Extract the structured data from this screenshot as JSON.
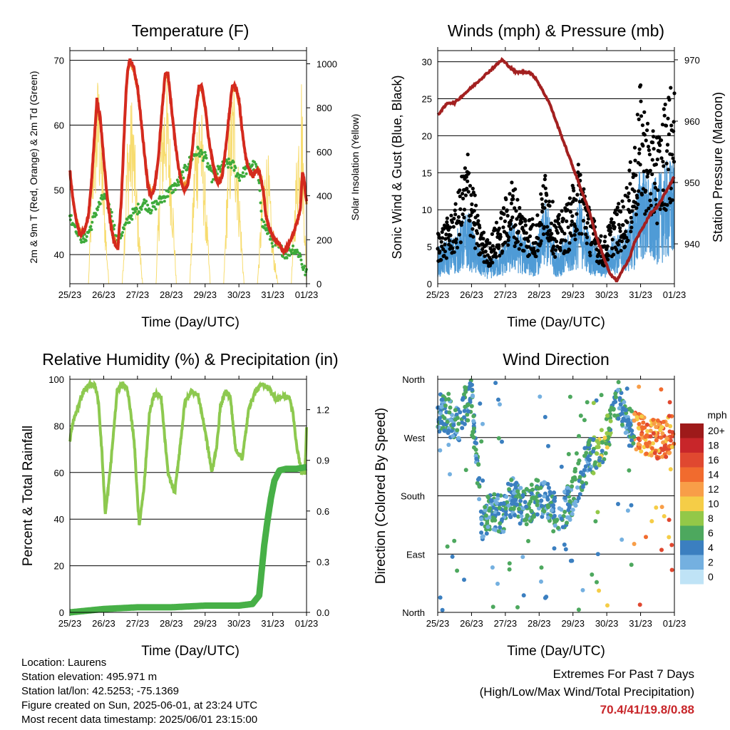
{
  "x_ticks": [
    "25/23",
    "26/23",
    "27/23",
    "28/23",
    "29/23",
    "30/23",
    "31/23",
    "01/23"
  ],
  "chart_data": [
    {
      "type": "line",
      "title": "Temperature (F)",
      "xlabel": "Time (Day/UTC)",
      "ylabel": "2m & 9m T (Red, Orange) & 2m Td (Green)",
      "y2label": "Solar Insolation (Yellow)",
      "ylim": [
        35.5,
        71.5
      ],
      "y_ticks": [
        40,
        50,
        60,
        70
      ],
      "y2lim": [
        0,
        1060
      ],
      "y2_ticks": [
        0,
        200,
        400,
        600,
        800,
        1000
      ],
      "colors": {
        "t2m": "#d42a1e",
        "t9m": "#f08a24",
        "td2m": "#3daa3a",
        "solar": "#f7dc6f"
      },
      "series": [
        {
          "key": "t2m",
          "x": [
            0,
            0.1,
            0.2,
            0.3,
            0.45,
            0.55,
            0.65,
            0.75,
            0.8,
            0.9,
            1.0,
            1.1,
            1.2,
            1.3,
            1.42,
            1.52,
            1.6,
            1.66,
            1.72,
            1.78,
            1.88,
            2.0,
            2.1,
            2.2,
            2.3,
            2.4,
            2.5,
            2.62,
            2.72,
            2.82,
            2.9,
            3.0,
            3.1,
            3.2,
            3.3,
            3.4,
            3.5,
            3.62,
            3.72,
            3.82,
            3.9,
            4.0,
            4.1,
            4.2,
            4.3,
            4.4,
            4.5,
            4.6,
            4.72,
            4.8,
            4.9,
            5.0,
            5.1,
            5.2,
            5.3,
            5.42,
            5.5,
            5.6,
            5.72,
            5.8,
            5.9,
            6.0,
            6.1,
            6.2,
            6.3,
            6.42,
            6.5,
            6.6,
            6.72,
            6.82,
            6.88,
            6.94,
            7.0
          ],
          "values": [
            53,
            48,
            45,
            43,
            44,
            46,
            52,
            60,
            64,
            61,
            55,
            49,
            45,
            42,
            41,
            48,
            58,
            65,
            69,
            70,
            69,
            66,
            61,
            56,
            51,
            49,
            50,
            55,
            62,
            68,
            68,
            63,
            58,
            54,
            51,
            50,
            51,
            56,
            62,
            66,
            66,
            63,
            58,
            55,
            52,
            51,
            52,
            56,
            62,
            66,
            66,
            64,
            59,
            55,
            53,
            52,
            53,
            53,
            50,
            46,
            44,
            43,
            42,
            41.5,
            40.5,
            41,
            42,
            43,
            45,
            47,
            53,
            51,
            48
          ]
        },
        {
          "key": "t9m",
          "x": [
            0,
            0.1,
            0.2,
            0.3,
            0.45,
            0.55,
            0.65,
            0.75,
            0.8,
            0.9,
            1.0,
            1.1,
            1.2,
            1.3,
            1.42,
            1.52,
            1.6,
            1.66,
            1.72,
            1.78,
            1.88,
            2.0,
            2.1,
            2.2,
            2.3,
            2.4,
            2.5,
            2.62,
            2.72,
            2.82,
            2.9,
            3.0,
            3.1,
            3.2,
            3.3,
            3.4,
            3.5,
            3.62,
            3.72,
            3.82,
            3.9,
            4.0,
            4.1,
            4.2,
            4.3,
            4.4,
            4.5,
            4.6,
            4.72,
            4.8,
            4.9,
            5.0,
            5.1,
            5.2,
            5.3,
            5.42,
            5.5,
            5.6,
            5.72,
            5.8,
            5.9,
            6.0,
            6.1,
            6.2,
            6.3,
            6.42,
            6.5,
            6.6,
            6.72,
            6.82,
            6.88,
            6.94,
            7.0
          ],
          "values": [
            52.5,
            48,
            45.5,
            43.5,
            44,
            46,
            51.5,
            59,
            63,
            60.5,
            55,
            49.5,
            45.5,
            42.5,
            41.5,
            48,
            57.5,
            64,
            68.5,
            69.5,
            68.5,
            65.5,
            61,
            56,
            51.5,
            49.5,
            50.5,
            55,
            61.5,
            67.5,
            67.5,
            62.5,
            58,
            54,
            51.5,
            50.5,
            51.5,
            56,
            61.5,
            65.5,
            65.5,
            62.5,
            58,
            55,
            52.5,
            51.5,
            52.5,
            56,
            61.5,
            65.5,
            65.5,
            63.5,
            59,
            55,
            53,
            52,
            53,
            53,
            50,
            46,
            44,
            43,
            42,
            41.5,
            40.5,
            41,
            42,
            43,
            45,
            47,
            52,
            50.5,
            48
          ]
        },
        {
          "key": "td2m",
          "x": [
            0,
            0.2,
            0.4,
            0.6,
            0.8,
            1.0,
            1.2,
            1.4,
            1.6,
            1.8,
            2.0,
            2.2,
            2.4,
            2.6,
            2.8,
            3.0,
            3.2,
            3.4,
            3.6,
            3.8,
            4.0,
            4.2,
            4.4,
            4.6,
            4.8,
            5.0,
            5.2,
            5.4,
            5.55,
            5.7,
            5.8,
            6.0,
            6.2,
            6.4,
            6.6,
            6.8,
            6.9,
            7.0
          ],
          "values": [
            46,
            44,
            42,
            44,
            47,
            49,
            47,
            42,
            44,
            46,
            47,
            48,
            47,
            48,
            49,
            50,
            51,
            53,
            55,
            56,
            55,
            52,
            53,
            54,
            54,
            52,
            53,
            54,
            53,
            45,
            44,
            42,
            41,
            40,
            41,
            40,
            38,
            37
          ]
        },
        {
          "key": "solar",
          "x": [
            0.55,
            0.7,
            0.85,
            1.0,
            1.15,
            1.55,
            1.7,
            1.85,
            2.0,
            2.15,
            2.55,
            2.7,
            2.85,
            3.0,
            3.15,
            3.55,
            3.7,
            3.85,
            4.0,
            4.15,
            4.55,
            4.7,
            4.85,
            5.0,
            5.15,
            5.55,
            5.7,
            5.85,
            6.0,
            6.15,
            6.55,
            6.7,
            6.85,
            7.0
          ],
          "values": [
            0,
            800,
            1000,
            500,
            0,
            0,
            700,
            900,
            400,
            0,
            0,
            800,
            1000,
            600,
            0,
            0,
            700,
            950,
            500,
            0,
            0,
            750,
            980,
            500,
            0,
            0,
            500,
            650,
            200,
            0,
            0,
            600,
            1000,
            0
          ]
        }
      ]
    },
    {
      "type": "scatter",
      "title": "Winds (mph) & Pressure (mb)",
      "xlabel": "Time (Day/UTC)",
      "ylabel": "Sonic Wind & Gust (Blue, Black)",
      "y2label": "Station Pressure (Maroon)",
      "ylim": [
        0,
        31.5
      ],
      "y_ticks": [
        0,
        5,
        10,
        15,
        20,
        25,
        30
      ],
      "y2lim": [
        933.5,
        971.5
      ],
      "y2_ticks": [
        940,
        950,
        960,
        970
      ],
      "colors": {
        "wind": "#4f9bd6",
        "gust": "#000000",
        "pressure": "#a32020"
      },
      "series": [
        {
          "key": "pressure",
          "x": [
            0,
            0.15,
            0.3,
            0.5,
            0.7,
            0.9,
            1.1,
            1.3,
            1.5,
            1.7,
            1.9,
            2.1,
            2.3,
            2.5,
            2.7,
            2.9,
            3.1,
            3.3,
            3.5,
            3.7,
            3.9,
            4.1,
            4.3,
            4.5,
            4.7,
            4.9,
            5.1,
            5.3,
            5.5,
            5.7,
            5.8,
            5.9,
            6.1,
            6.3,
            6.5,
            6.7,
            6.9,
            7.0
          ],
          "values": [
            961,
            962,
            963,
            963,
            964,
            965,
            966,
            967,
            968,
            969,
            970,
            969,
            968,
            968,
            968,
            967,
            965,
            963,
            960,
            957,
            954,
            951,
            948,
            945,
            941,
            938,
            935,
            934,
            936,
            938,
            940,
            941,
            943,
            945,
            946,
            948,
            950,
            951
          ]
        },
        {
          "key": "wind_base",
          "x": [
            0,
            0.5,
            0.9,
            1.2,
            1.5,
            1.9,
            2.2,
            2.5,
            2.9,
            3.2,
            3.5,
            3.9,
            4.2,
            4.5,
            4.9,
            5.2,
            5.5,
            5.8,
            6.0,
            6.3,
            6.6,
            6.8,
            7.0
          ],
          "values": [
            3,
            4,
            6,
            3,
            2,
            3,
            5,
            4,
            3,
            7,
            3,
            4,
            7,
            4,
            2,
            4,
            4,
            6,
            10,
            8,
            9,
            10,
            10
          ]
        },
        {
          "key": "gust_base",
          "x": [
            0,
            0.5,
            0.9,
            1.2,
            1.5,
            1.9,
            2.2,
            2.5,
            2.9,
            3.2,
            3.5,
            3.9,
            4.2,
            4.5,
            4.9,
            5.2,
            5.5,
            5.8,
            6.0,
            6.3,
            6.6,
            6.8,
            7.0
          ],
          "values": [
            5,
            7,
            13,
            6,
            4,
            7,
            10,
            7,
            6,
            11,
            6,
            8,
            12,
            7,
            4,
            7,
            8,
            13,
            19,
            14,
            15,
            19,
            18
          ]
        }
      ]
    },
    {
      "type": "line",
      "title": "Relative Humidity (%) & Precipitation (in)",
      "xlabel": "Time (Day/UTC)",
      "ylabel": "Percent & Total Rainfall",
      "ylim": [
        0,
        100
      ],
      "y_ticks": [
        0,
        20,
        40,
        60,
        80,
        100
      ],
      "y2lim": [
        0,
        1.38
      ],
      "y2_ticks": [
        "0.0",
        "0.3",
        "0.6",
        "0.9",
        "1.2"
      ],
      "colors": {
        "rh": "#8dc94f",
        "precip": "#47b047"
      },
      "series": [
        {
          "key": "rh",
          "x": [
            0,
            0.1,
            0.2,
            0.4,
            0.6,
            0.75,
            0.85,
            0.95,
            1.05,
            1.2,
            1.4,
            1.55,
            1.7,
            1.9,
            2.05,
            2.2,
            2.35,
            2.5,
            2.7,
            2.9,
            3.1,
            3.25,
            3.4,
            3.6,
            3.8,
            4.0,
            4.2,
            4.35,
            4.45,
            4.6,
            4.75,
            4.9,
            5.1,
            5.3,
            5.5,
            5.7,
            5.9,
            6.1,
            6.3,
            6.5,
            6.6,
            6.7,
            6.8,
            6.85,
            6.95,
            7.0
          ],
          "values": [
            74,
            82,
            86,
            95,
            98,
            97,
            90,
            68,
            42,
            62,
            95,
            98,
            96,
            74,
            37,
            55,
            85,
            94,
            92,
            60,
            51,
            70,
            90,
            95,
            93,
            78,
            60,
            72,
            88,
            95,
            92,
            70,
            66,
            88,
            95,
            98,
            96,
            91,
            93,
            92,
            85,
            72,
            64,
            60,
            60,
            79
          ]
        },
        {
          "key": "precip",
          "x": [
            0,
            0.5,
            1.0,
            2.0,
            3.0,
            4.0,
            5.0,
            5.4,
            5.6,
            5.75,
            5.85,
            5.95,
            6.05,
            6.2,
            6.4,
            6.7,
            7.0
          ],
          "values": [
            0,
            0.01,
            0.02,
            0.03,
            0.03,
            0.04,
            0.04,
            0.05,
            0.1,
            0.4,
            0.55,
            0.68,
            0.78,
            0.84,
            0.85,
            0.85,
            0.86
          ]
        }
      ]
    },
    {
      "type": "scatter",
      "title": "Wind Direction",
      "xlabel": "Time (Day/UTC)",
      "ylabel": "Direction (Colored By Speed)",
      "y_ticks": [
        "North",
        "East",
        "South",
        "West",
        "North"
      ],
      "ylim": [
        0,
        360
      ],
      "legend_title": "mph",
      "legend_labels": [
        "20+",
        "18",
        "16",
        "14",
        "12",
        "10",
        "8",
        "6",
        "4",
        "2",
        "0"
      ],
      "legend_colors": [
        "#9e1a1a",
        "#c8262a",
        "#e04830",
        "#f16b2e",
        "#f89e48",
        "#f5cd47",
        "#93c848",
        "#4da85e",
        "#3b7fc0",
        "#74b0e0",
        "#bfe3f6"
      ],
      "series": [
        {
          "key": "direction",
          "x": [
            0,
            0.3,
            0.6,
            0.8,
            1.0,
            1.3,
            1.6,
            1.9,
            2.2,
            2.5,
            2.8,
            3.0,
            3.3,
            3.6,
            3.9,
            4.2,
            4.5,
            4.8,
            5.0,
            5.2,
            5.4,
            5.6,
            5.8,
            6.0,
            6.3,
            6.6,
            6.9,
            7.0
          ],
          "values": [
            310,
            300,
            290,
            320,
            330,
            140,
            160,
            150,
            180,
            160,
            170,
            180,
            170,
            150,
            170,
            210,
            240,
            250,
            270,
            320,
            330,
            290,
            280,
            275,
            270,
            265,
            275,
            270
          ]
        }
      ]
    }
  ],
  "info": {
    "location": "Location: Laurens",
    "elevation": "Station elevation: 495.971 m",
    "latlon": "Station lat/lon: 42.5253; -75.1369",
    "created": "Figure created on Sun, 2025-06-01, at 23:24 UTC",
    "recent": "Most recent data timestamp: 2025/06/01 23:15:00"
  },
  "extremes": {
    "title": "Extremes For Past 7 Days",
    "subtitle": "(High/Low/Max Wind/Total Precipitation)",
    "values": "70.4/41/19.8/0.88"
  }
}
